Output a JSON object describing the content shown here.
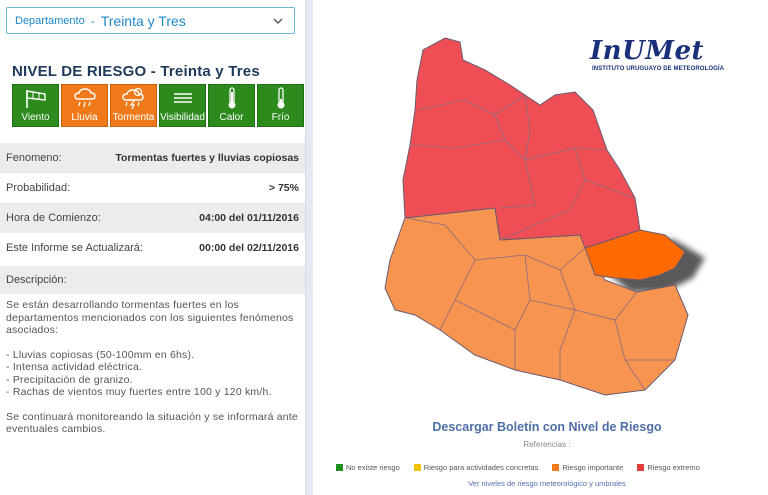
{
  "department_select": {
    "label": "Departamento",
    "separator": "-",
    "value": "Treinta y Tres"
  },
  "risk_title": "NIVEL DE RIESGO - Treinta y Tres",
  "phenomena": [
    {
      "label": "Viento",
      "icon": "wind-icon",
      "level": "green"
    },
    {
      "label": "Lluvia",
      "icon": "rain-icon",
      "level": "orange"
    },
    {
      "label": "Tormenta",
      "icon": "storm-icon",
      "level": "orange"
    },
    {
      "label": "Visibilidad",
      "icon": "fog-icon",
      "level": "green"
    },
    {
      "label": "Calor",
      "icon": "thermometer-hot-icon",
      "level": "green"
    },
    {
      "label": "Frío",
      "icon": "thermometer-cold-icon",
      "level": "green"
    }
  ],
  "info": {
    "fenomeno_label": "Fenomeno:",
    "fenomeno_value": "Tormentas fuertes y lluvias copiosas",
    "probabilidad_label": "Probabilidad:",
    "probabilidad_value": "> 75%",
    "comienzo_label": "Hora de Comienzo:",
    "comienzo_value": "04:00 del 01/11/2016",
    "actualizara_label": "Este Informe se Actualizará:",
    "actualizara_value": "00:00 del 02/11/2016"
  },
  "description": {
    "label": "Descripción:",
    "intro": "Se están desarrollando tormentas fuertes en los departamentos mencionados con los siguientes fenómenos asociados:",
    "items": [
      "- Lluvias copiosas (50-100mm en 6hs).",
      "- Intensa actividad eléctrica.",
      "- Precipitación de granizo.",
      "- Rachas de vientos muy fuertes entre 100 y 120 km/h."
    ],
    "closing": "Se continuará monitoreando la situación y se informará ante eventuales cambios."
  },
  "logo": {
    "name": "InUMet",
    "subtitle": "INSTITUTO URUGUAYO DE METEOROLOGÍA"
  },
  "download_label": "Descargar Boletín con Nivel de Riesgo",
  "references_label": "Referencias :",
  "legend": [
    {
      "label": "No existe riesgo",
      "color": "#1f8f1f"
    },
    {
      "label": "Riesgo para actividades concretas",
      "color": "#f2c200"
    },
    {
      "label": "Riesgo importante",
      "color": "#ee7a1a"
    },
    {
      "label": "Riesgo extremo",
      "color": "#e23b3b"
    }
  ],
  "legend_link": "Ver niveles de riesgo meteorológico y umbrales",
  "colors": {
    "accent": "#1e88c8",
    "green": "#2d8a1d",
    "orange": "#f07a1a",
    "map_extreme": "#f04e55",
    "map_important": "#f7944f",
    "map_selected": "#ff6a00"
  }
}
